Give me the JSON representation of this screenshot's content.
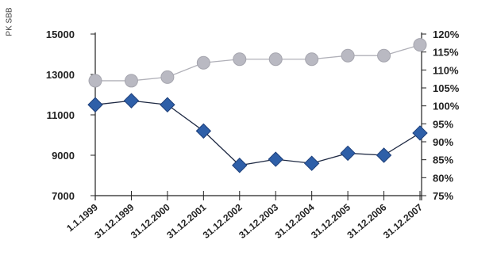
{
  "side_label": "PK SBB",
  "chart_data": {
    "type": "line",
    "categories": [
      "1.1.1999",
      "31.12.1999",
      "31.12.2000",
      "31.12.2001",
      "31.12.2002",
      "31.12.2003",
      "31.12.2004",
      "31.12.2005",
      "31.12.2006",
      "31.12.2007"
    ],
    "y_left": {
      "ticks": [
        15000,
        13000,
        11000,
        9000,
        7000
      ],
      "ylim": [
        7000,
        15000
      ]
    },
    "y_right": {
      "ticks": [
        "120%",
        "115%",
        "110%",
        "105%",
        "100%",
        "95%",
        "90%",
        "85%",
        "80%",
        "75%"
      ],
      "ylim": [
        75,
        120
      ]
    },
    "series": [
      {
        "axis": "left",
        "marker": "diamond",
        "color": "#2e5fa8",
        "values": [
          11500,
          11700,
          11500,
          10200,
          8500,
          8800,
          8600,
          9100,
          9000,
          10100
        ]
      },
      {
        "axis": "right",
        "marker": "circle",
        "color": "#b9b9c2",
        "values": [
          107,
          107,
          108,
          112,
          113,
          113,
          113,
          114,
          114,
          117
        ]
      }
    ],
    "grid": false
  }
}
